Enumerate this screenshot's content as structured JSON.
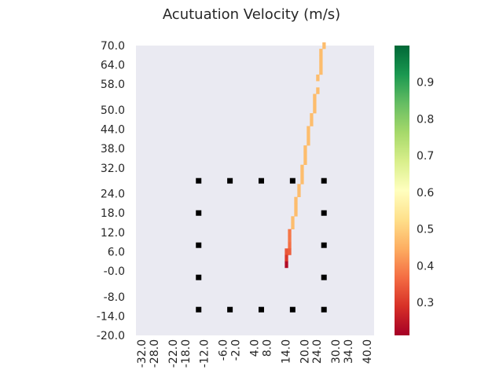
{
  "chart_data": {
    "type": "heatmap",
    "title": "Acutuation Velocity (m/s)",
    "xlabel": "",
    "ylabel": "",
    "x_tick_labels": [
      "-32.0",
      "-28.0",
      "-22.0",
      "-18.0",
      "-12.0",
      "-6.0",
      "-2.0",
      "4.0",
      "8.0",
      "14.0",
      "20.0",
      "24.0",
      "30.0",
      "34.0",
      "40.0"
    ],
    "y_tick_labels": [
      "70.0",
      "64.0",
      "58.0",
      "50.0",
      "44.0",
      "38.0",
      "32.0",
      "24.0",
      "18.0",
      "12.0",
      "6.0",
      "-0.0",
      "-8.0",
      "-14.0",
      "-20.0"
    ],
    "x_range": [
      -34,
      42
    ],
    "y_range": [
      -20,
      70
    ],
    "colormap": "RdYlGn",
    "colorbar_range": [
      0.21,
      1.0
    ],
    "colorbar_ticks": [
      "0.3",
      "0.4",
      "0.5",
      "0.6",
      "0.7",
      "0.8",
      "0.9"
    ],
    "background_color": "#eaeaf2",
    "grid": false,
    "cells": [
      {
        "x": 26.0,
        "y": 70,
        "value": 0.47
      },
      {
        "x": 25.0,
        "y": 68,
        "value": 0.47
      },
      {
        "x": 25.0,
        "y": 66,
        "value": 0.47
      },
      {
        "x": 25.0,
        "y": 64,
        "value": 0.47
      },
      {
        "x": 25.0,
        "y": 62,
        "value": 0.47
      },
      {
        "x": 24.0,
        "y": 60,
        "value": 0.47
      },
      {
        "x": 24.0,
        "y": 56,
        "value": 0.47
      },
      {
        "x": 23.0,
        "y": 54,
        "value": 0.47
      },
      {
        "x": 23.0,
        "y": 52,
        "value": 0.47
      },
      {
        "x": 23.0,
        "y": 50,
        "value": 0.47
      },
      {
        "x": 22.0,
        "y": 48,
        "value": 0.47
      },
      {
        "x": 22.0,
        "y": 46,
        "value": 0.47
      },
      {
        "x": 21.0,
        "y": 44,
        "value": 0.47
      },
      {
        "x": 21.0,
        "y": 42,
        "value": 0.47
      },
      {
        "x": 21.0,
        "y": 40,
        "value": 0.47
      },
      {
        "x": 20.0,
        "y": 38,
        "value": 0.47
      },
      {
        "x": 20.0,
        "y": 36,
        "value": 0.47
      },
      {
        "x": 20.0,
        "y": 34,
        "value": 0.47
      },
      {
        "x": 19.0,
        "y": 32,
        "value": 0.47
      },
      {
        "x": 19.0,
        "y": 30,
        "value": 0.47
      },
      {
        "x": 19.0,
        "y": 28,
        "value": 0.47
      },
      {
        "x": 18.0,
        "y": 26,
        "value": 0.47
      },
      {
        "x": 18.0,
        "y": 24,
        "value": 0.47
      },
      {
        "x": 17.0,
        "y": 22,
        "value": 0.47
      },
      {
        "x": 17.0,
        "y": 20,
        "value": 0.47
      },
      {
        "x": 17.0,
        "y": 18,
        "value": 0.47
      },
      {
        "x": 16.0,
        "y": 16,
        "value": 0.47
      },
      {
        "x": 16.0,
        "y": 14,
        "value": 0.47
      },
      {
        "x": 15.0,
        "y": 12,
        "value": 0.38
      },
      {
        "x": 15.0,
        "y": 10,
        "value": 0.38
      },
      {
        "x": 15.0,
        "y": 8,
        "value": 0.37
      },
      {
        "x": 15.0,
        "y": 6,
        "value": 0.35
      },
      {
        "x": 14.0,
        "y": 6,
        "value": 0.34
      },
      {
        "x": 14.0,
        "y": 4,
        "value": 0.3
      },
      {
        "x": 14.0,
        "y": 2,
        "value": 0.23
      }
    ],
    "markers": [
      [
        -14,
        28
      ],
      [
        -4,
        28
      ],
      [
        6,
        28
      ],
      [
        16,
        28
      ],
      [
        26,
        28
      ],
      [
        -14,
        18
      ],
      [
        26,
        18
      ],
      [
        -14,
        8
      ],
      [
        26,
        8
      ],
      [
        -14,
        -2
      ],
      [
        26,
        -2
      ],
      [
        -14,
        -12
      ],
      [
        -4,
        -12
      ],
      [
        6,
        -12
      ],
      [
        16,
        -12
      ],
      [
        26,
        -12
      ]
    ]
  }
}
